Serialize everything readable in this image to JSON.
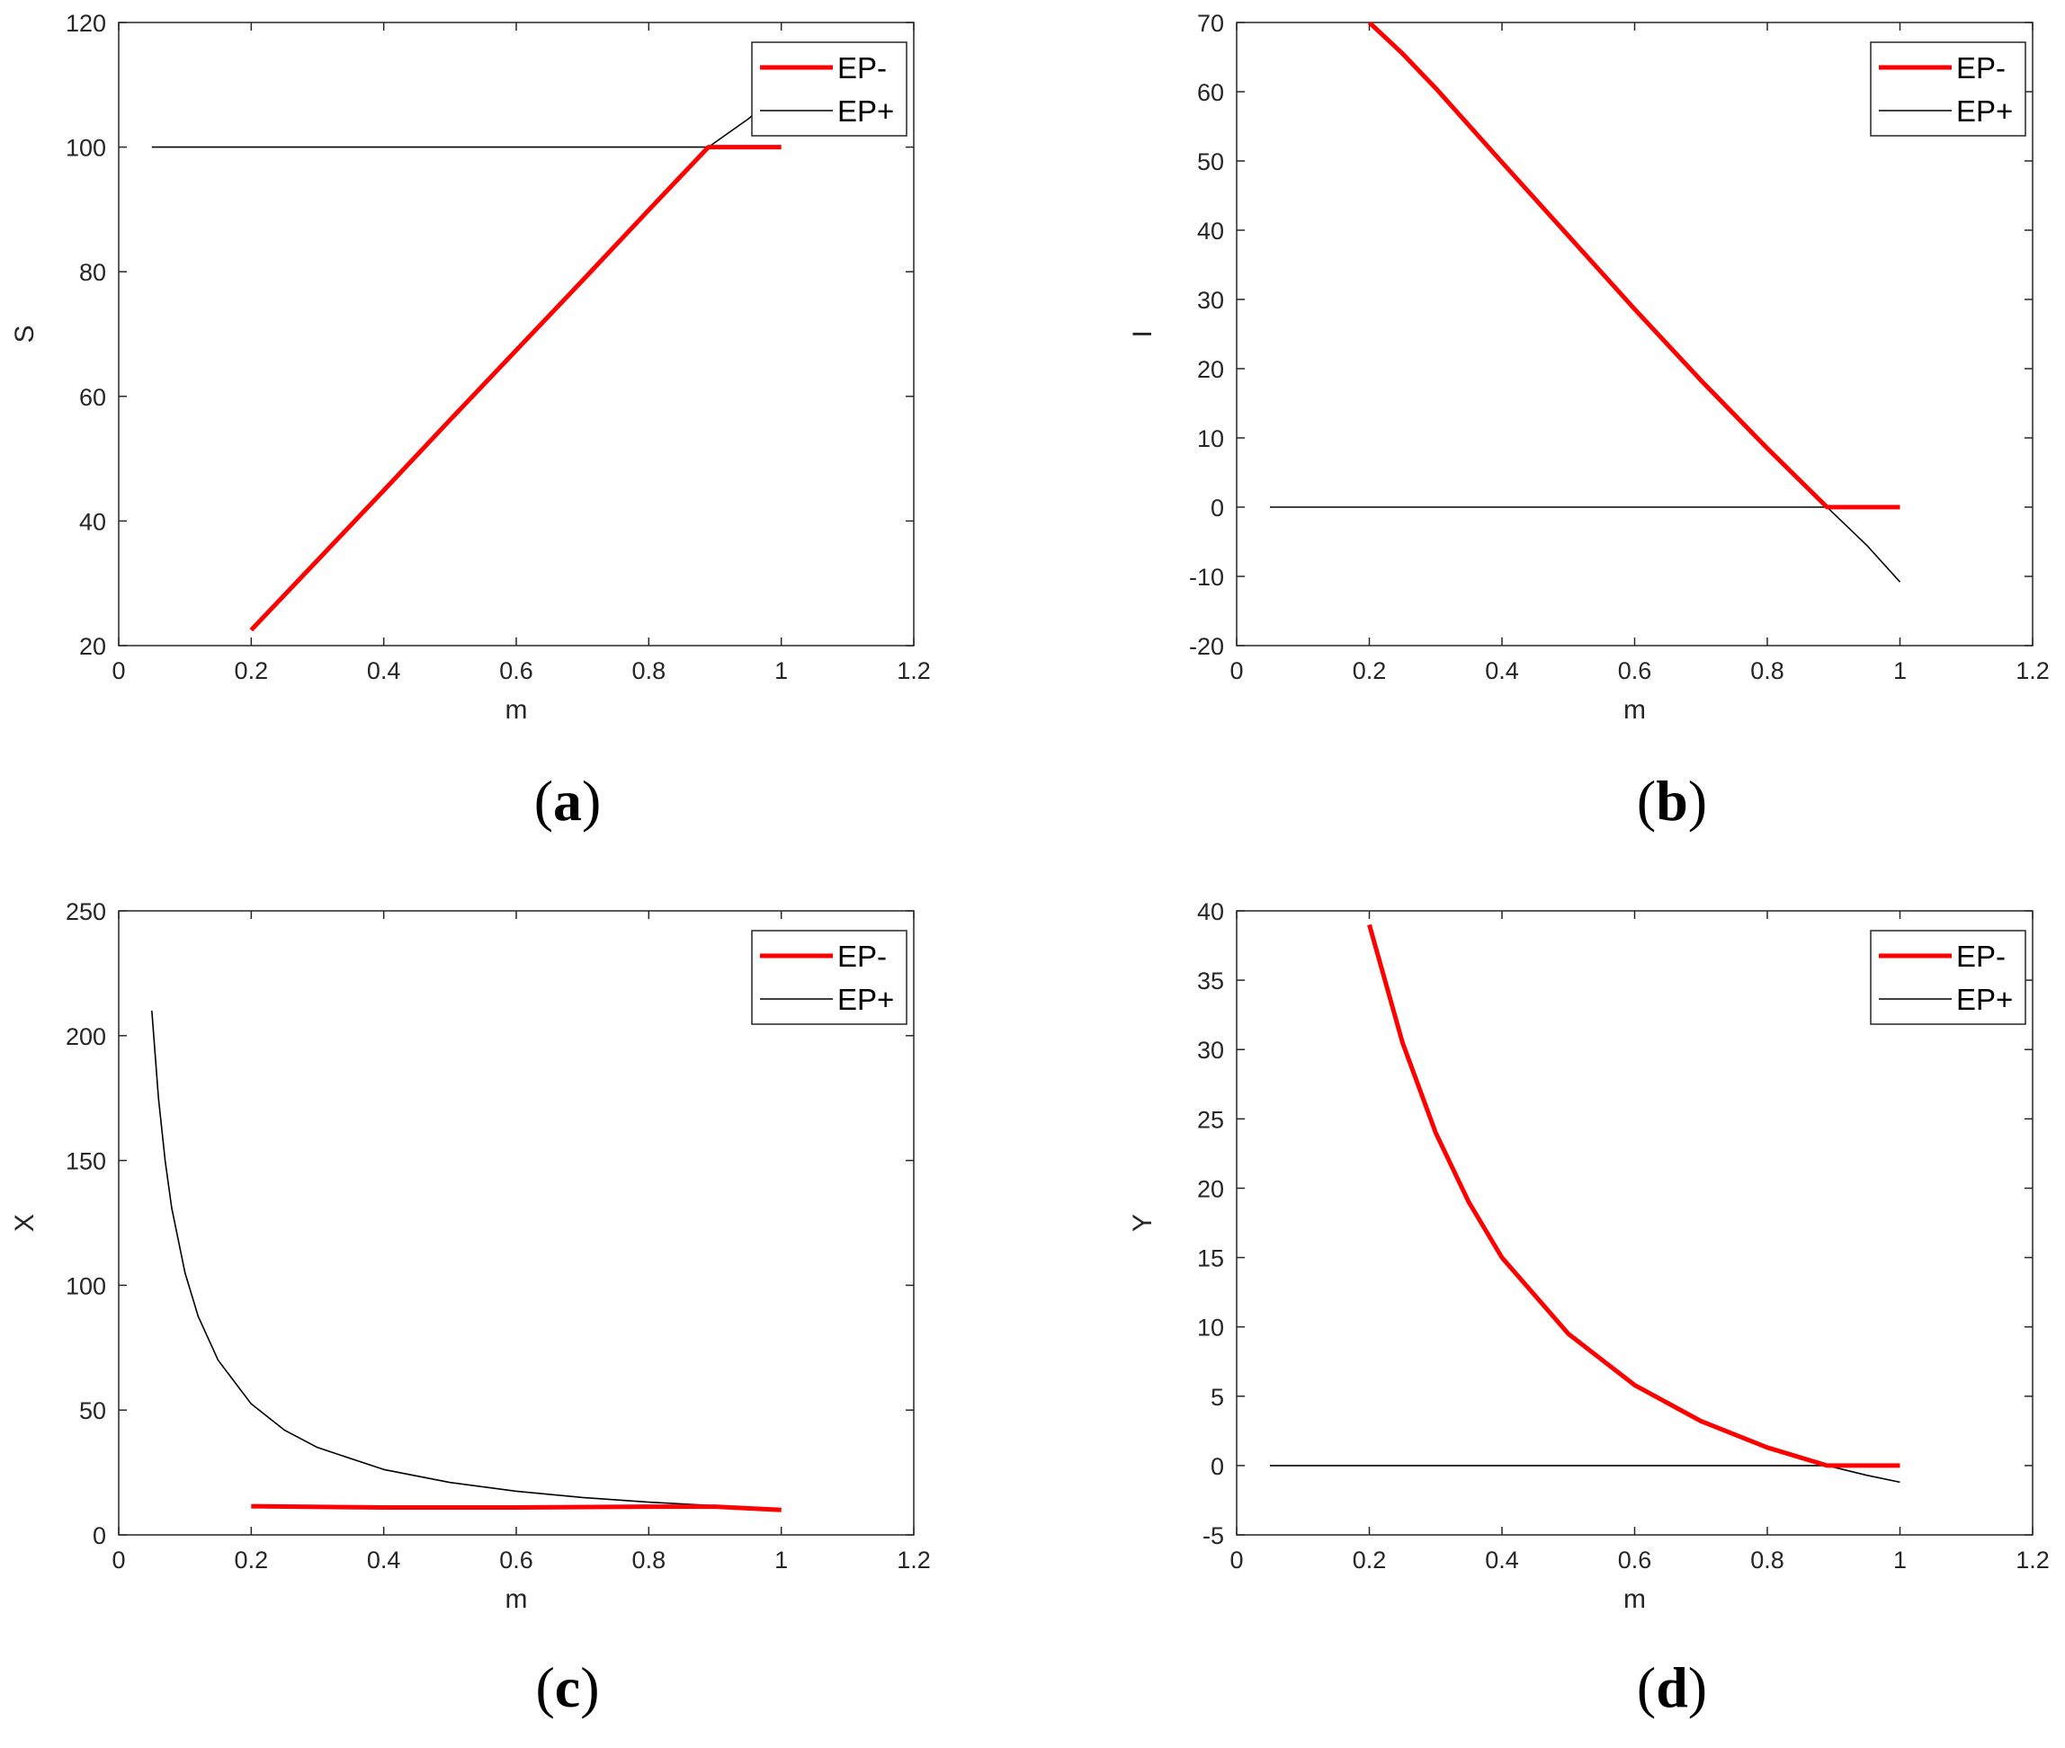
{
  "colors": {
    "ep_minus": "#ff0000",
    "ep_plus": "#000000",
    "axes": "#262626"
  },
  "chart_data": [
    {
      "id": "a",
      "type": "line",
      "caption": "a",
      "xlabel": "m",
      "ylabel": "S",
      "xlim": [
        0,
        1.2
      ],
      "ylim": [
        20,
        120
      ],
      "xticks": [
        "0",
        "0.2",
        "0.4",
        "0.6",
        "0.8",
        "1",
        "1.2"
      ],
      "yticks": [
        "20",
        "40",
        "60",
        "80",
        "100",
        "120"
      ],
      "xtick_values": [
        0,
        0.2,
        0.4,
        0.6,
        0.8,
        1,
        1.2
      ],
      "ytick_values": [
        20,
        40,
        60,
        80,
        100,
        120
      ],
      "legend": {
        "placement": "top-right",
        "entries": [
          "EP-",
          "EP+"
        ]
      },
      "series": [
        {
          "name": "EP-",
          "color": "#ff0000",
          "x": [
            0.2,
            0.3,
            0.4,
            0.5,
            0.6,
            0.7,
            0.8,
            0.89,
            0.9,
            1.0
          ],
          "y": [
            22.5,
            33.7,
            44.9,
            56.2,
            67.4,
            78.6,
            89.9,
            100,
            100,
            100
          ]
        },
        {
          "name": "EP+",
          "color": "#000000",
          "x": [
            0.05,
            0.2,
            0.4,
            0.6,
            0.8,
            0.89,
            0.95,
            1.0
          ],
          "y": [
            100,
            100,
            100,
            100,
            100,
            100,
            104.5,
            109
          ]
        }
      ]
    },
    {
      "id": "b",
      "type": "line",
      "caption": "b",
      "xlabel": "m",
      "ylabel": "I",
      "xlim": [
        0,
        1.2
      ],
      "ylim": [
        -20,
        70
      ],
      "xticks": [
        "0",
        "0.2",
        "0.4",
        "0.6",
        "0.8",
        "1",
        "1.2"
      ],
      "yticks": [
        "-20",
        "-10",
        "0",
        "10",
        "20",
        "30",
        "40",
        "50",
        "60",
        "70"
      ],
      "xtick_values": [
        0,
        0.2,
        0.4,
        0.6,
        0.8,
        1,
        1.2
      ],
      "ytick_values": [
        -20,
        -10,
        0,
        10,
        20,
        30,
        40,
        50,
        60,
        70
      ],
      "legend": {
        "placement": "top-right",
        "entries": [
          "EP-",
          "EP+"
        ]
      },
      "series": [
        {
          "name": "EP-",
          "color": "#ff0000",
          "x": [
            0.2,
            0.25,
            0.3,
            0.4,
            0.5,
            0.6,
            0.7,
            0.8,
            0.89,
            0.9,
            1.0
          ],
          "y": [
            70,
            65.5,
            60.5,
            49.8,
            39.2,
            28.6,
            18.3,
            8.5,
            0,
            0,
            0
          ]
        },
        {
          "name": "EP+",
          "color": "#000000",
          "x": [
            0.05,
            0.2,
            0.4,
            0.6,
            0.8,
            0.89,
            0.95,
            1.0
          ],
          "y": [
            0,
            0,
            0,
            0,
            0,
            0,
            -5.5,
            -10.8
          ]
        }
      ]
    },
    {
      "id": "c",
      "type": "line",
      "caption": "c",
      "xlabel": "m",
      "ylabel": "X",
      "xlim": [
        0,
        1.2
      ],
      "ylim": [
        0,
        250
      ],
      "xticks": [
        "0",
        "0.2",
        "0.4",
        "0.6",
        "0.8",
        "1",
        "1.2"
      ],
      "yticks": [
        "0",
        "50",
        "100",
        "150",
        "200",
        "250"
      ],
      "xtick_values": [
        0,
        0.2,
        0.4,
        0.6,
        0.8,
        1,
        1.2
      ],
      "ytick_values": [
        0,
        50,
        100,
        150,
        200,
        250
      ],
      "legend": {
        "placement": "top-right",
        "entries": [
          "EP-",
          "EP+"
        ]
      },
      "series": [
        {
          "name": "EP-",
          "color": "#ff0000",
          "x": [
            0.2,
            0.4,
            0.6,
            0.8,
            0.9,
            1.0
          ],
          "y": [
            11.5,
            11,
            11,
            11.3,
            11.3,
            10
          ]
        },
        {
          "name": "EP+",
          "color": "#000000",
          "x": [
            0.05,
            0.06,
            0.07,
            0.08,
            0.1,
            0.12,
            0.15,
            0.2,
            0.25,
            0.3,
            0.4,
            0.5,
            0.6,
            0.7,
            0.8,
            0.9,
            1.0
          ],
          "y": [
            210,
            175,
            150,
            131,
            105,
            87.5,
            70,
            52.5,
            42,
            35,
            26.2,
            21,
            17.5,
            15,
            13.1,
            11.7,
            10.5
          ]
        }
      ]
    },
    {
      "id": "d",
      "type": "line",
      "caption": "d",
      "xlabel": "m",
      "ylabel": "Y",
      "xlim": [
        0,
        1.2
      ],
      "ylim": [
        -5,
        40
      ],
      "xticks": [
        "0",
        "0.2",
        "0.4",
        "0.6",
        "0.8",
        "1",
        "1.2"
      ],
      "yticks": [
        "-5",
        "0",
        "5",
        "10",
        "15",
        "20",
        "25",
        "30",
        "35",
        "40"
      ],
      "xtick_values": [
        0,
        0.2,
        0.4,
        0.6,
        0.8,
        1,
        1.2
      ],
      "ytick_values": [
        -5,
        0,
        5,
        10,
        15,
        20,
        25,
        30,
        35,
        40
      ],
      "legend": {
        "placement": "top-right",
        "entries": [
          "EP-",
          "EP+"
        ]
      },
      "series": [
        {
          "name": "EP-",
          "color": "#ff0000",
          "x": [
            0.2,
            0.25,
            0.3,
            0.35,
            0.4,
            0.5,
            0.6,
            0.7,
            0.8,
            0.89,
            0.9,
            1.0
          ],
          "y": [
            39,
            30.5,
            24,
            19,
            15,
            9.5,
            5.8,
            3.2,
            1.3,
            0,
            0,
            0
          ]
        },
        {
          "name": "EP+",
          "color": "#000000",
          "x": [
            0.05,
            0.2,
            0.4,
            0.6,
            0.8,
            0.89,
            0.95,
            1.0
          ],
          "y": [
            0,
            0,
            0,
            0,
            0,
            0,
            -0.7,
            -1.2
          ]
        }
      ]
    }
  ]
}
